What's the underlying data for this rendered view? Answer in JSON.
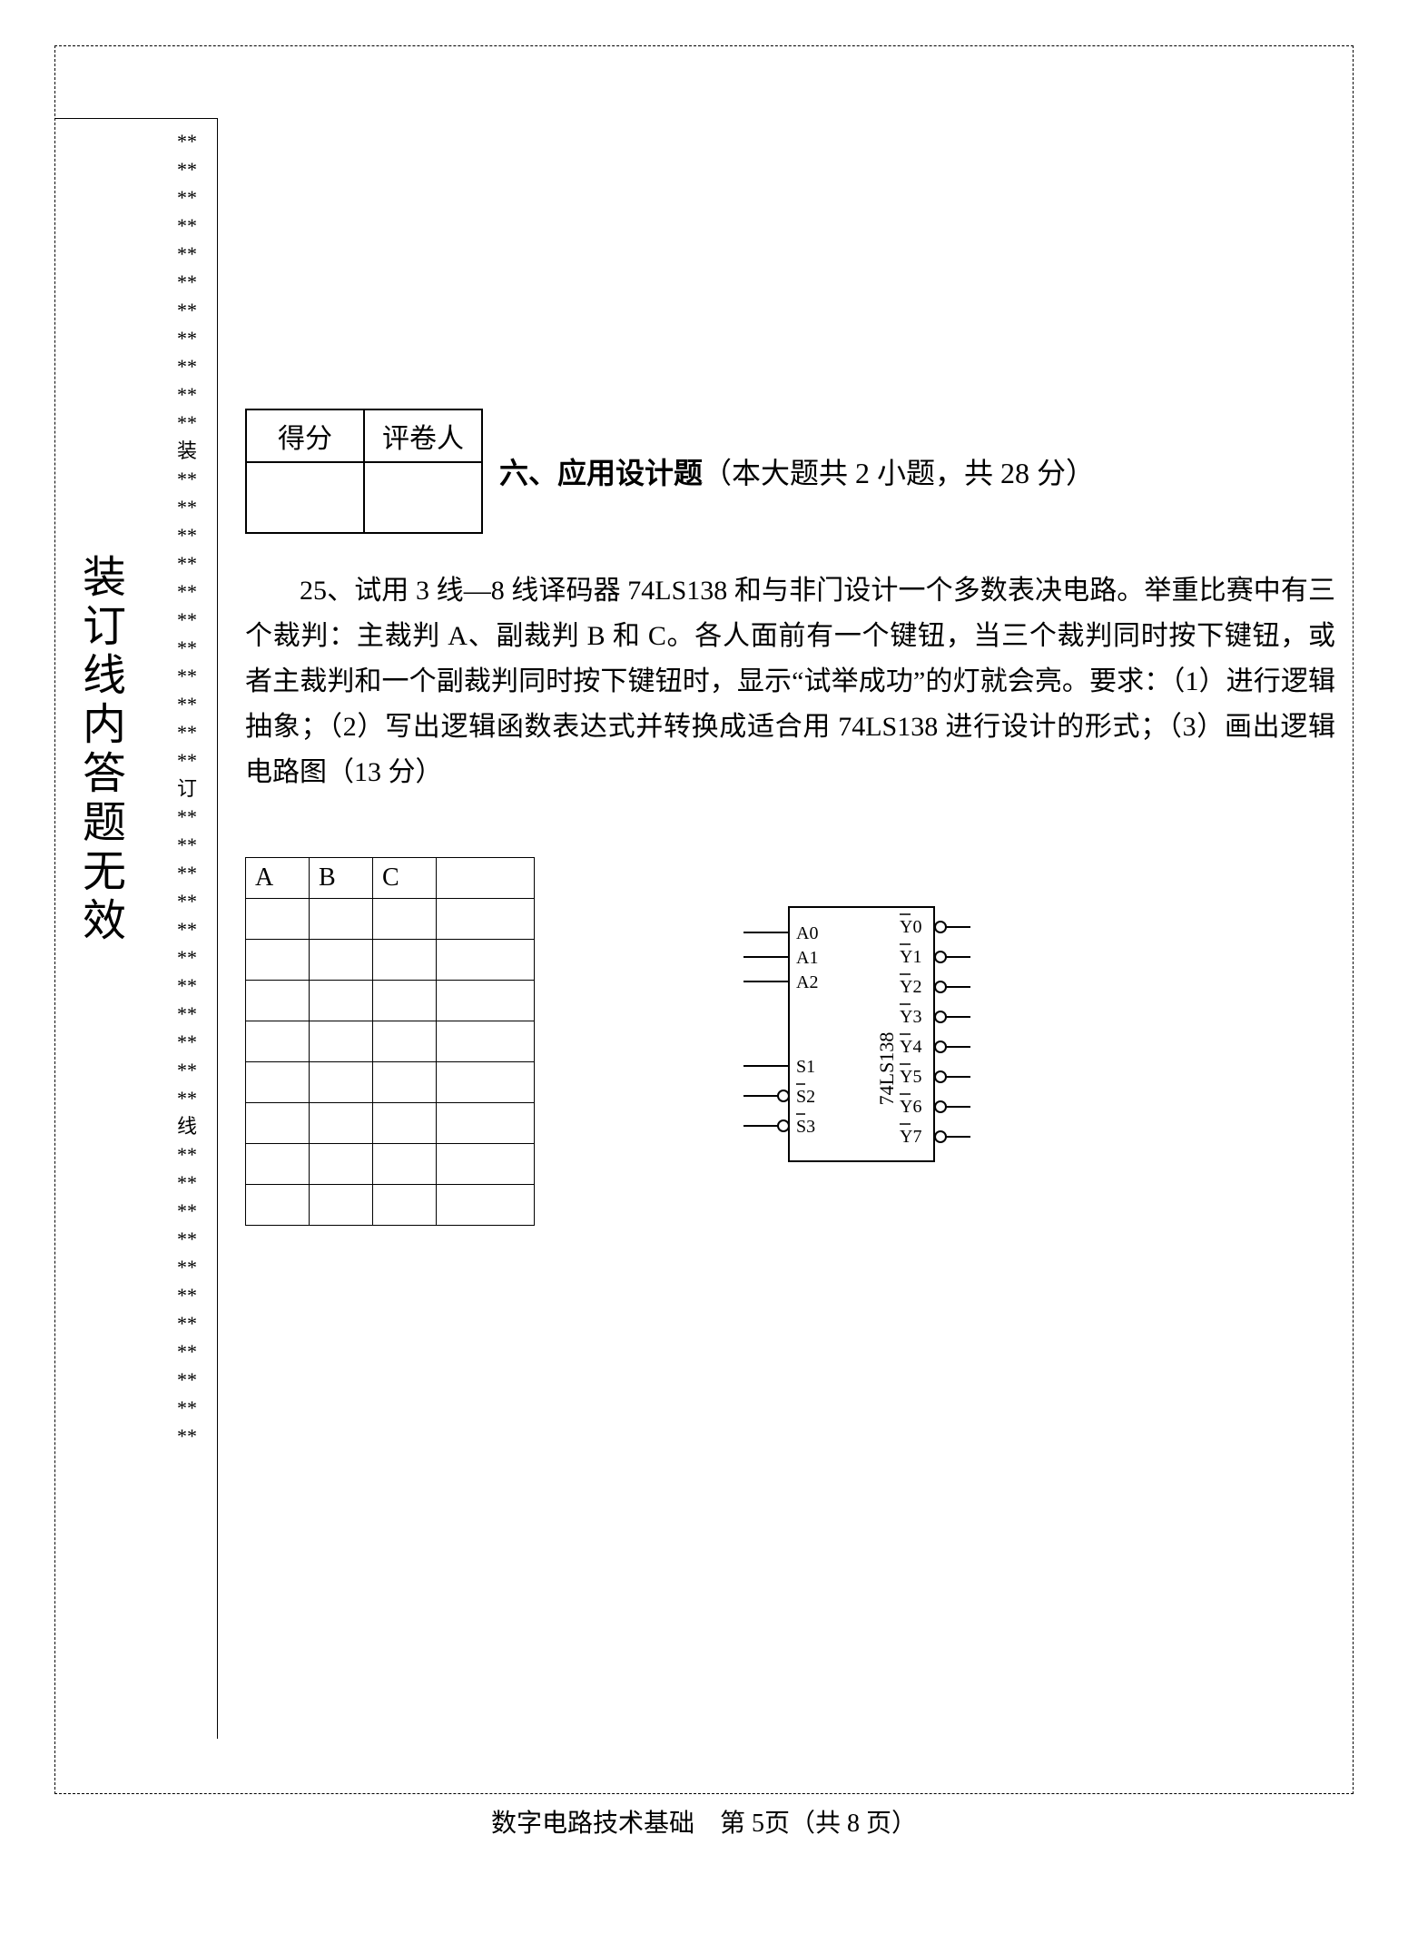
{
  "binding": {
    "vertical_label": "装订线内答题无效",
    "markers": [
      "装",
      "订",
      "线"
    ],
    "star": "**"
  },
  "score_box": {
    "score_label": "得分",
    "grader_label": "评卷人"
  },
  "section": {
    "number": "六、",
    "title": "应用设计题",
    "meta": "（本大题共 2 小题，共 28 分）"
  },
  "question": {
    "text": "25、试用 3 线—8 线译码器 74LS138 和与非门设计一个多数表决电路。举重比赛中有三个裁判：主裁判 A、副裁判 B 和 C。各人面前有一个键钮，当三个裁判同时按下键钮，或者主裁判和一个副裁判同时按下键钮时，显示“试举成功”的灯就会亮。要求：（1）进行逻辑抽象；（2）写出逻辑函数表达式并转换成适合用 74LS138 进行设计的形式；（3）画出逻辑电路图（13 分）"
  },
  "truth_table": {
    "headers": [
      "A",
      "B",
      "C",
      ""
    ],
    "blank_rows": 8
  },
  "chip": {
    "name": "74LS138",
    "left_pins": [
      "A0",
      "A1",
      "A2",
      "S1",
      "S2",
      "S3"
    ],
    "left_bubble": [
      false,
      false,
      false,
      false,
      true,
      true
    ],
    "left_overline": [
      false,
      false,
      false,
      false,
      true,
      true
    ],
    "right_pins": [
      "Y0",
      "Y1",
      "Y2",
      "Y3",
      "Y4",
      "Y5",
      "Y6",
      "Y7"
    ],
    "body_stroke": "#000000",
    "font_family": "Times New Roman, serif"
  },
  "footer": {
    "subject": "数字电路技术基础",
    "page_label": "第 5页（共 8 页）"
  },
  "colors": {
    "text": "#000000",
    "background": "#ffffff"
  }
}
